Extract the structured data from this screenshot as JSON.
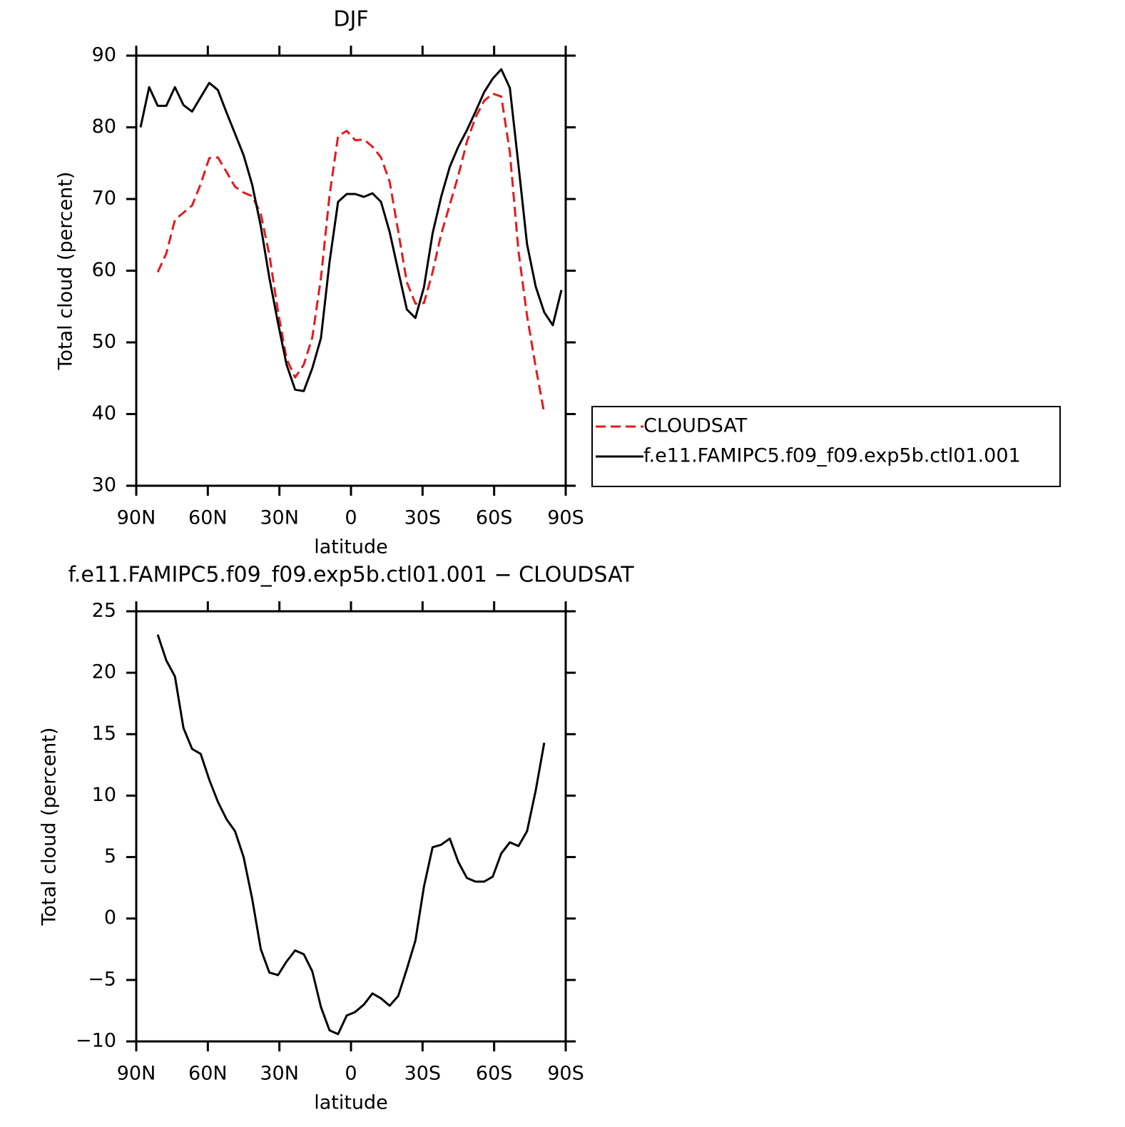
{
  "chart_data": [
    {
      "type": "line",
      "title": "DJF",
      "xlabel": "latitude",
      "ylabel": "Total cloud (percent)",
      "x": [
        88.2,
        84.6,
        81,
        77.4,
        73.8,
        70.2,
        66.6,
        63,
        59.4,
        55.8,
        52.2,
        48.6,
        45,
        41.4,
        37.8,
        34.2,
        30.6,
        27,
        23.4,
        19.8,
        16.2,
        12.6,
        9,
        5.4,
        1.8,
        -1.8,
        -5.4,
        -9,
        -12.6,
        -16.2,
        -19.8,
        -23.4,
        -27,
        -30.6,
        -34.2,
        -37.8,
        -41.4,
        -45,
        -48.6,
        -52.2,
        -55.8,
        -59.4,
        -63,
        -66.6,
        -70.2,
        -73.8,
        -77.4,
        -81,
        -84.6,
        -88.2
      ],
      "series": [
        {
          "name": "CLOUDSAT",
          "color": "#e41a1c",
          "dashed": true,
          "values": [
            null,
            null,
            59.8,
            62.4,
            67.1,
            68.1,
            69.1,
            72.1,
            75.7,
            75.8,
            73.8,
            71.7,
            70.9,
            70.4,
            67.9,
            62.2,
            54.3,
            47.7,
            45.1,
            46.9,
            50.7,
            59.0,
            70.5,
            78.8,
            79.5,
            78.2,
            78.3,
            77.3,
            75.8,
            72.4,
            65.5,
            58.4,
            55.4,
            55.5,
            59.8,
            65.1,
            69.2,
            73.3,
            78,
            81.4,
            83.7,
            84.7,
            84.3,
            76.5,
            62.7,
            53.7,
            46.6,
            40.1,
            null,
            null
          ]
        },
        {
          "name": "f.e11.FAMIPC5.f09_f09.exp5b.ctl01.001",
          "color": "#000000",
          "dashed": false,
          "values": [
            80,
            85.6,
            83,
            83,
            85.6,
            83.1,
            82.2,
            84.2,
            86.2,
            85.2,
            82.1,
            79.1,
            76.1,
            72,
            66.2,
            59,
            52.7,
            46.9,
            43.4,
            43.2,
            46.4,
            50.6,
            61.2,
            69.6,
            70.7,
            70.7,
            70.3,
            70.8,
            69.6,
            65.4,
            60,
            54.6,
            53.4,
            57.7,
            65.2,
            70.3,
            74.5,
            77.3,
            79.6,
            82.2,
            84.9,
            86.8,
            88.1,
            85.5,
            74.7,
            63.7,
            57.8,
            54.2,
            52.4,
            57.3
          ]
        }
      ],
      "xlim": [
        90,
        -90
      ],
      "xticks": [
        {
          "value": 90,
          "label": "90N"
        },
        {
          "value": 60,
          "label": "60N"
        },
        {
          "value": 30,
          "label": "30N"
        },
        0,
        {
          "value": -30,
          "label": "30S"
        },
        {
          "value": -60,
          "label": "60S"
        },
        {
          "value": -90,
          "label": "90S"
        }
      ],
      "ylim": [
        30,
        90
      ],
      "yticks": [
        30,
        40,
        50,
        60,
        70,
        80,
        90
      ],
      "legend": "right"
    },
    {
      "type": "line",
      "title": "f.e11.FAMIPC5.f09_f09.exp5b.ctl01.001 − CLOUDSAT",
      "xlabel": "latitude",
      "ylabel": "Total cloud (percent)",
      "x": [
        88.2,
        84.6,
        81,
        77.4,
        73.8,
        70.2,
        66.6,
        63,
        59.4,
        55.8,
        52.2,
        48.6,
        45,
        41.4,
        37.8,
        34.2,
        30.6,
        27,
        23.4,
        19.8,
        16.2,
        12.6,
        9,
        5.4,
        1.8,
        -1.8,
        -5.4,
        -9,
        -12.6,
        -16.2,
        -19.8,
        -23.4,
        -27,
        -30.6,
        -34.2,
        -37.8,
        -41.4,
        -45,
        -48.6,
        -52.2,
        -55.8,
        -59.4,
        -63,
        -66.6,
        -70.2,
        -73.8,
        -77.4,
        -81,
        -84.6,
        -88.2
      ],
      "values": [
        null,
        null,
        23.1,
        21,
        19.7,
        15.5,
        13.8,
        13.4,
        11.3,
        9.5,
        8.1,
        7.1,
        5,
        1.6,
        -2.5,
        -4.4,
        -4.6,
        -3.5,
        -2.6,
        -2.9,
        -4.3,
        -7.2,
        -9.1,
        -9.4,
        -7.9,
        -7.6,
        -7,
        -6.1,
        -6.5,
        -7.1,
        -6.3,
        -4.1,
        -1.8,
        2.6,
        5.8,
        6,
        6.5,
        4.6,
        3.3,
        3,
        3,
        3.4,
        5.3,
        6.2,
        5.9,
        7.1,
        10.4,
        14.3,
        null,
        null
      ],
      "color": "#000000",
      "xlim": [
        90,
        -90
      ],
      "xticks": [
        {
          "value": 90,
          "label": "90N"
        },
        {
          "value": 60,
          "label": "60N"
        },
        {
          "value": 30,
          "label": "30N"
        },
        0,
        {
          "value": -30,
          "label": "30S"
        },
        {
          "value": -60,
          "label": "60S"
        },
        {
          "value": -90,
          "label": "90S"
        }
      ],
      "ylim": [
        -10,
        25
      ],
      "yticks": [
        {
          "value": -10,
          "label": "−10"
        },
        {
          "value": -5,
          "label": "−5"
        },
        0,
        5,
        10,
        15,
        20,
        25
      ]
    }
  ]
}
